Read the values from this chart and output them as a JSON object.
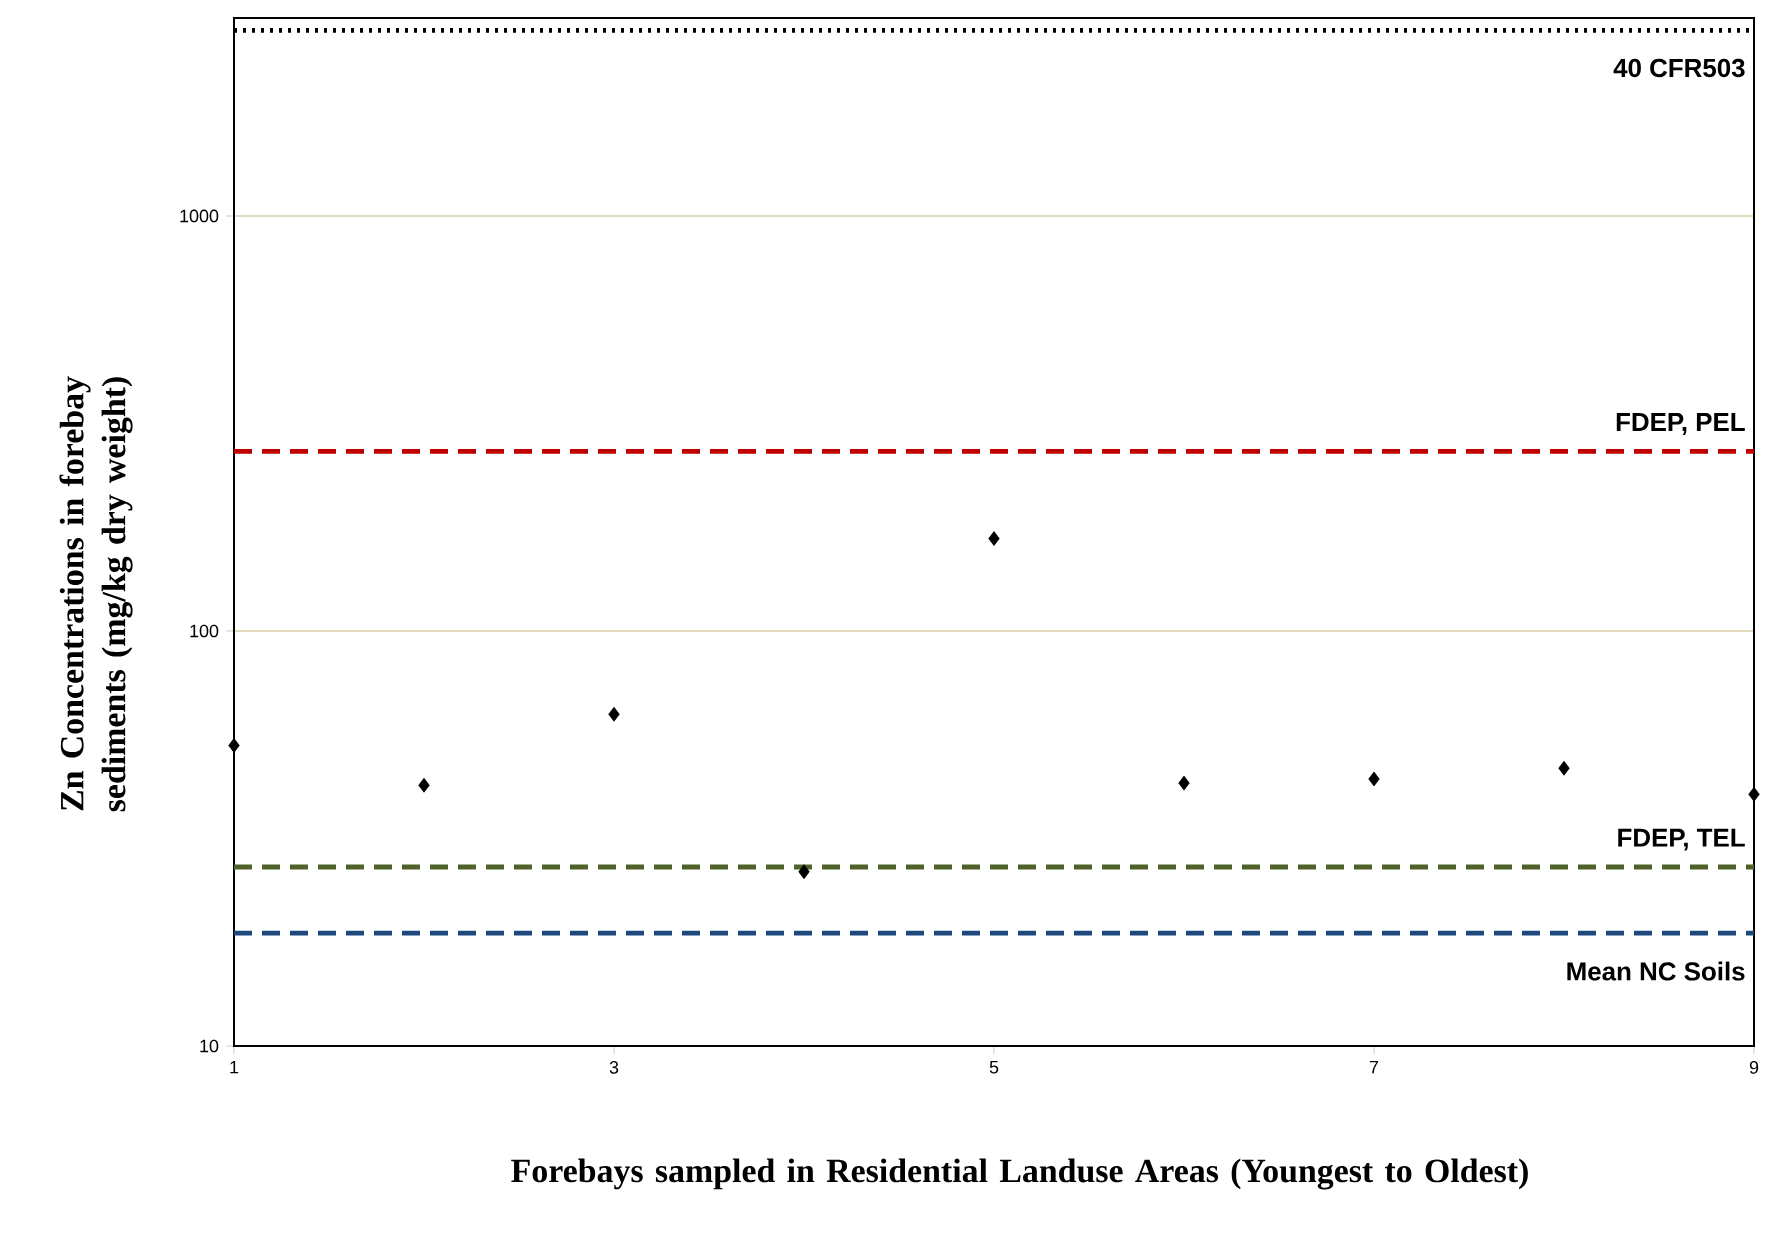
{
  "chart_data": {
    "type": "scatter",
    "xlabel": "Forebays sampled in Residential Landuse Areas (Youngest to Oldest)",
    "ylabel": "Zn Concentrations in forebay sediments (mg/kg dry weight)",
    "x": [
      1,
      2,
      3,
      4,
      5,
      6,
      7,
      8,
      9
    ],
    "series": [
      {
        "color": "#000000",
        "values": [
          53,
          42.5,
          63,
          26.3,
          167,
          43,
          44,
          46.7,
          40.4
        ]
      }
    ],
    "marker": "diamond",
    "log": "y",
    "grid": "y",
    "xlim": [
      1,
      9
    ],
    "xticks": [
      1,
      3,
      5,
      7,
      9
    ],
    "ylim": [
      10,
      3000
    ],
    "yticks": [
      10,
      100,
      1000
    ],
    "ref_lines": [
      {
        "axis": "y",
        "value": 2800,
        "label": "40 CFR503",
        "color": "#000000",
        "line_style": "dotted"
      },
      {
        "axis": "y",
        "value": 271,
        "label": "FDEP, PEL",
        "color": "#c00000",
        "line_style": "dashed"
      },
      {
        "axis": "y",
        "value": 27,
        "label": "FDEP, TEL",
        "color": "#4f6228",
        "line_style": "dashed"
      },
      {
        "axis": "y",
        "value": 18.7,
        "label": "Mean NC Soils",
        "color": "#1f497d",
        "line_style": "dashed"
      }
    ]
  }
}
